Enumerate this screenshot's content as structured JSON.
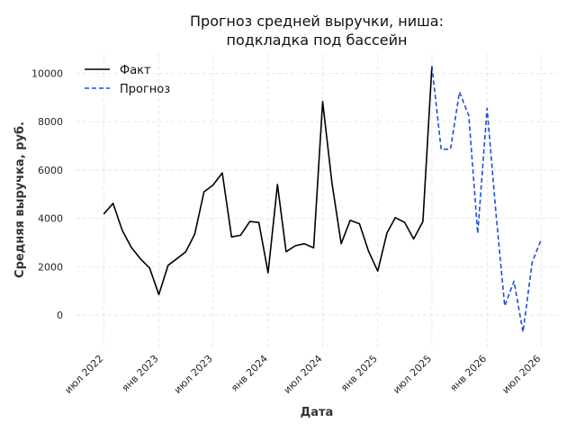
{
  "chart_data": {
    "type": "line",
    "title_line1": "Прогноз средней выручки, ниша:",
    "title_line2": "подкладка под бассейн",
    "xlabel": "Дата",
    "ylabel": "Средняя выручка, руб.",
    "ylim": [
      -1300,
      10800
    ],
    "xlim": [
      "2022-04-01",
      "2026-09-01"
    ],
    "y_ticks": [
      0,
      2000,
      4000,
      6000,
      8000,
      10000
    ],
    "x_ticks": [
      {
        "date": "2022-07-01",
        "label": "июл 2022"
      },
      {
        "date": "2023-01-01",
        "label": "янв 2023"
      },
      {
        "date": "2023-07-01",
        "label": "июл 2023"
      },
      {
        "date": "2024-01-01",
        "label": "янв 2024"
      },
      {
        "date": "2024-07-01",
        "label": "июл 2024"
      },
      {
        "date": "2025-01-01",
        "label": "янв 2025"
      },
      {
        "date": "2025-07-01",
        "label": "июл 2025"
      },
      {
        "date": "2026-01-01",
        "label": "янв 2026"
      },
      {
        "date": "2026-07-01",
        "label": "июл 2026"
      }
    ],
    "grid": true,
    "legend_position": "top-left",
    "series": [
      {
        "name": "Факт",
        "color": "#000000",
        "style": "solid",
        "points": [
          [
            "2022-07-01",
            4180
          ],
          [
            "2022-08-01",
            4620
          ],
          [
            "2022-09-01",
            3500
          ],
          [
            "2022-10-01",
            2800
          ],
          [
            "2022-11-01",
            2320
          ],
          [
            "2022-12-01",
            1950
          ],
          [
            "2023-01-01",
            850
          ],
          [
            "2023-02-01",
            2060
          ],
          [
            "2023-03-01",
            2320
          ],
          [
            "2023-04-01",
            2620
          ],
          [
            "2023-05-01",
            3350
          ],
          [
            "2023-06-01",
            5100
          ],
          [
            "2023-07-01",
            5380
          ],
          [
            "2023-08-01",
            5880
          ],
          [
            "2023-09-01",
            3230
          ],
          [
            "2023-10-01",
            3300
          ],
          [
            "2023-11-01",
            3870
          ],
          [
            "2023-12-01",
            3830
          ],
          [
            "2024-01-01",
            1750
          ],
          [
            "2024-02-01",
            5400
          ],
          [
            "2024-03-01",
            2620
          ],
          [
            "2024-04-01",
            2870
          ],
          [
            "2024-05-01",
            2950
          ],
          [
            "2024-06-01",
            2780
          ],
          [
            "2024-07-01",
            8830
          ],
          [
            "2024-08-01",
            5480
          ],
          [
            "2024-09-01",
            2950
          ],
          [
            "2024-10-01",
            3920
          ],
          [
            "2024-11-01",
            3780
          ],
          [
            "2024-12-01",
            2650
          ],
          [
            "2025-01-01",
            1820
          ],
          [
            "2025-02-01",
            3400
          ],
          [
            "2025-03-01",
            4030
          ],
          [
            "2025-04-01",
            3830
          ],
          [
            "2025-05-01",
            3150
          ],
          [
            "2025-06-01",
            3870
          ],
          [
            "2025-07-01",
            10300
          ]
        ]
      },
      {
        "name": "Прогноз",
        "color": "#1f4fd6",
        "style": "dashed",
        "points": [
          [
            "2025-07-01",
            10300
          ],
          [
            "2025-08-01",
            6850
          ],
          [
            "2025-09-01",
            6870
          ],
          [
            "2025-10-01",
            9230
          ],
          [
            "2025-11-01",
            8250
          ],
          [
            "2025-12-01",
            3380
          ],
          [
            "2026-01-01",
            8550
          ],
          [
            "2026-02-01",
            4030
          ],
          [
            "2026-03-01",
            380
          ],
          [
            "2026-04-01",
            1400
          ],
          [
            "2026-05-01",
            -700
          ],
          [
            "2026-06-01",
            2200
          ],
          [
            "2026-07-01",
            3130
          ]
        ]
      }
    ]
  }
}
